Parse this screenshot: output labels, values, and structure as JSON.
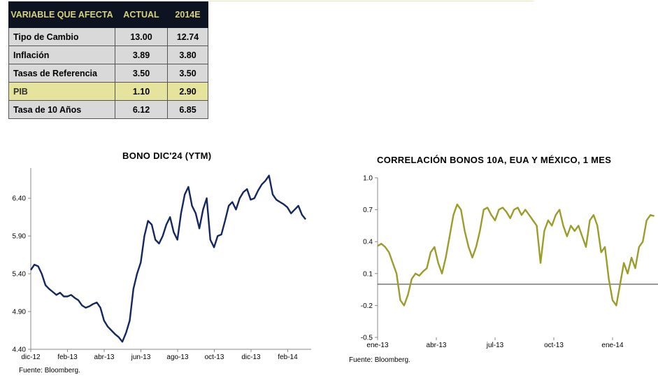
{
  "table": {
    "headers": [
      "VARIABLE QUE AFECTA",
      "ACTUAL",
      "2014E"
    ],
    "rows": [
      {
        "label": "Tipo de Cambio",
        "actual": "13.00",
        "estimate": "12.74"
      },
      {
        "label": "Inflación",
        "actual": "3.89",
        "estimate": "3.80"
      },
      {
        "label": "Tasas de Referencia",
        "actual": "3.50",
        "estimate": "3.50"
      },
      {
        "label": "PIB",
        "actual": "1.10",
        "estimate": "2.90"
      },
      {
        "label": "Tasa de 10 Años",
        "actual": "6.12",
        "estimate": "6.85"
      }
    ]
  },
  "colors": {
    "bono_line": "#14275e",
    "corr_line": "#9c9c2a",
    "header_bg": "#0d1321",
    "header_text": "#d8d27a",
    "highlight_row": "#e5e39c"
  },
  "chart_data": [
    {
      "type": "line",
      "title": "BONO DIC'24 (YTM)",
      "source": "Fuente: Bloomberg.",
      "xlabel": "",
      "ylabel": "",
      "ylim": [
        4.4,
        6.8
      ],
      "yticks": [
        "4.40",
        "4.90",
        "5.40",
        "5.90",
        "6.40"
      ],
      "xticks": [
        "dic-12",
        "feb-13",
        "abr-13",
        "jun-13",
        "ago-13",
        "oct-13",
        "dic-13",
        "feb-14"
      ],
      "x_index_range": [
        0,
        15.3
      ],
      "series": [
        {
          "values": [
            [
              0,
              5.45
            ],
            [
              0.2,
              5.52
            ],
            [
              0.4,
              5.5
            ],
            [
              0.6,
              5.4
            ],
            [
              0.8,
              5.25
            ],
            [
              1.0,
              5.2
            ],
            [
              1.2,
              5.16
            ],
            [
              1.4,
              5.12
            ],
            [
              1.6,
              5.15
            ],
            [
              1.8,
              5.1
            ],
            [
              2.0,
              5.1
            ],
            [
              2.2,
              5.12
            ],
            [
              2.4,
              5.08
            ],
            [
              2.6,
              5.05
            ],
            [
              2.8,
              4.98
            ],
            [
              3.0,
              4.95
            ],
            [
              3.2,
              4.97
            ],
            [
              3.4,
              5.0
            ],
            [
              3.6,
              5.02
            ],
            [
              3.8,
              4.95
            ],
            [
              4.0,
              4.78
            ],
            [
              4.2,
              4.7
            ],
            [
              4.4,
              4.65
            ],
            [
              4.6,
              4.6
            ],
            [
              4.8,
              4.56
            ],
            [
              5.0,
              4.5
            ],
            [
              5.2,
              4.62
            ],
            [
              5.4,
              4.78
            ],
            [
              5.6,
              5.2
            ],
            [
              5.8,
              5.4
            ],
            [
              6.0,
              5.55
            ],
            [
              6.2,
              5.9
            ],
            [
              6.4,
              6.1
            ],
            [
              6.6,
              6.05
            ],
            [
              6.8,
              5.85
            ],
            [
              7.0,
              5.8
            ],
            [
              7.2,
              5.9
            ],
            [
              7.4,
              6.05
            ],
            [
              7.6,
              6.15
            ],
            [
              7.8,
              5.95
            ],
            [
              8.0,
              5.85
            ],
            [
              8.2,
              6.2
            ],
            [
              8.4,
              6.45
            ],
            [
              8.6,
              6.55
            ],
            [
              8.8,
              6.3
            ],
            [
              9.0,
              6.2
            ],
            [
              9.2,
              6.0
            ],
            [
              9.4,
              6.25
            ],
            [
              9.6,
              6.4
            ],
            [
              9.8,
              5.85
            ],
            [
              10.0,
              5.75
            ],
            [
              10.2,
              5.9
            ],
            [
              10.4,
              5.92
            ],
            [
              10.6,
              6.1
            ],
            [
              10.8,
              6.3
            ],
            [
              11.0,
              6.35
            ],
            [
              11.2,
              6.25
            ],
            [
              11.4,
              6.4
            ],
            [
              11.6,
              6.48
            ],
            [
              11.8,
              6.52
            ],
            [
              12.0,
              6.38
            ],
            [
              12.2,
              6.4
            ],
            [
              12.4,
              6.5
            ],
            [
              12.6,
              6.58
            ],
            [
              12.8,
              6.63
            ],
            [
              13.0,
              6.7
            ],
            [
              13.2,
              6.45
            ],
            [
              13.4,
              6.38
            ],
            [
              13.6,
              6.35
            ],
            [
              13.8,
              6.32
            ],
            [
              14.0,
              6.28
            ],
            [
              14.2,
              6.2
            ],
            [
              14.4,
              6.25
            ],
            [
              14.6,
              6.3
            ],
            [
              14.8,
              6.18
            ],
            [
              15.0,
              6.12
            ]
          ]
        }
      ]
    },
    {
      "type": "line",
      "title": "CORRELACIÓN BONOS 10A, EUA Y MÉXICO, 1 MES",
      "source": "Fuente: Bloomberg.",
      "xlabel": "",
      "ylabel": "",
      "ylim": [
        -0.5,
        1.0
      ],
      "yticks": [
        "-0.5",
        "-0.2",
        "0.1",
        "0.4",
        "0.7",
        "1.0"
      ],
      "xticks": [
        "ene-13",
        "abr-13",
        "jul-13",
        "oct-13",
        "ene-14"
      ],
      "x_index_range": [
        0,
        14.8
      ],
      "series": [
        {
          "values": [
            [
              0,
              0.36
            ],
            [
              0.2,
              0.38
            ],
            [
              0.4,
              0.35
            ],
            [
              0.6,
              0.3
            ],
            [
              0.8,
              0.2
            ],
            [
              1.0,
              0.1
            ],
            [
              1.2,
              -0.15
            ],
            [
              1.4,
              -0.2
            ],
            [
              1.6,
              -0.1
            ],
            [
              1.8,
              0.05
            ],
            [
              2.0,
              0.1
            ],
            [
              2.2,
              0.08
            ],
            [
              2.4,
              0.12
            ],
            [
              2.6,
              0.15
            ],
            [
              2.8,
              0.3
            ],
            [
              3.0,
              0.35
            ],
            [
              3.2,
              0.2
            ],
            [
              3.4,
              0.1
            ],
            [
              3.6,
              0.25
            ],
            [
              3.8,
              0.45
            ],
            [
              4.0,
              0.65
            ],
            [
              4.2,
              0.75
            ],
            [
              4.4,
              0.7
            ],
            [
              4.6,
              0.5
            ],
            [
              4.8,
              0.35
            ],
            [
              5.0,
              0.25
            ],
            [
              5.2,
              0.35
            ],
            [
              5.4,
              0.5
            ],
            [
              5.6,
              0.7
            ],
            [
              5.8,
              0.72
            ],
            [
              6.0,
              0.65
            ],
            [
              6.2,
              0.6
            ],
            [
              6.4,
              0.7
            ],
            [
              6.6,
              0.72
            ],
            [
              6.8,
              0.68
            ],
            [
              7.0,
              0.62
            ],
            [
              7.2,
              0.7
            ],
            [
              7.4,
              0.72
            ],
            [
              7.6,
              0.65
            ],
            [
              7.8,
              0.7
            ],
            [
              8.0,
              0.65
            ],
            [
              8.2,
              0.6
            ],
            [
              8.4,
              0.55
            ],
            [
              8.6,
              0.2
            ],
            [
              8.8,
              0.5
            ],
            [
              9.0,
              0.6
            ],
            [
              9.2,
              0.55
            ],
            [
              9.4,
              0.65
            ],
            [
              9.6,
              0.7
            ],
            [
              9.8,
              0.55
            ],
            [
              10.0,
              0.45
            ],
            [
              10.2,
              0.55
            ],
            [
              10.4,
              0.5
            ],
            [
              10.6,
              0.55
            ],
            [
              10.8,
              0.45
            ],
            [
              11.0,
              0.35
            ],
            [
              11.2,
              0.6
            ],
            [
              11.4,
              0.65
            ],
            [
              11.6,
              0.55
            ],
            [
              11.8,
              0.3
            ],
            [
              12.0,
              0.35
            ],
            [
              12.2,
              0.05
            ],
            [
              12.4,
              -0.15
            ],
            [
              12.6,
              -0.2
            ],
            [
              12.8,
              0.0
            ],
            [
              13.0,
              0.2
            ],
            [
              13.2,
              0.1
            ],
            [
              13.4,
              0.25
            ],
            [
              13.6,
              0.15
            ],
            [
              13.8,
              0.35
            ],
            [
              14.0,
              0.4
            ],
            [
              14.2,
              0.6
            ],
            [
              14.4,
              0.65
            ],
            [
              14.6,
              0.64
            ]
          ]
        }
      ]
    }
  ]
}
